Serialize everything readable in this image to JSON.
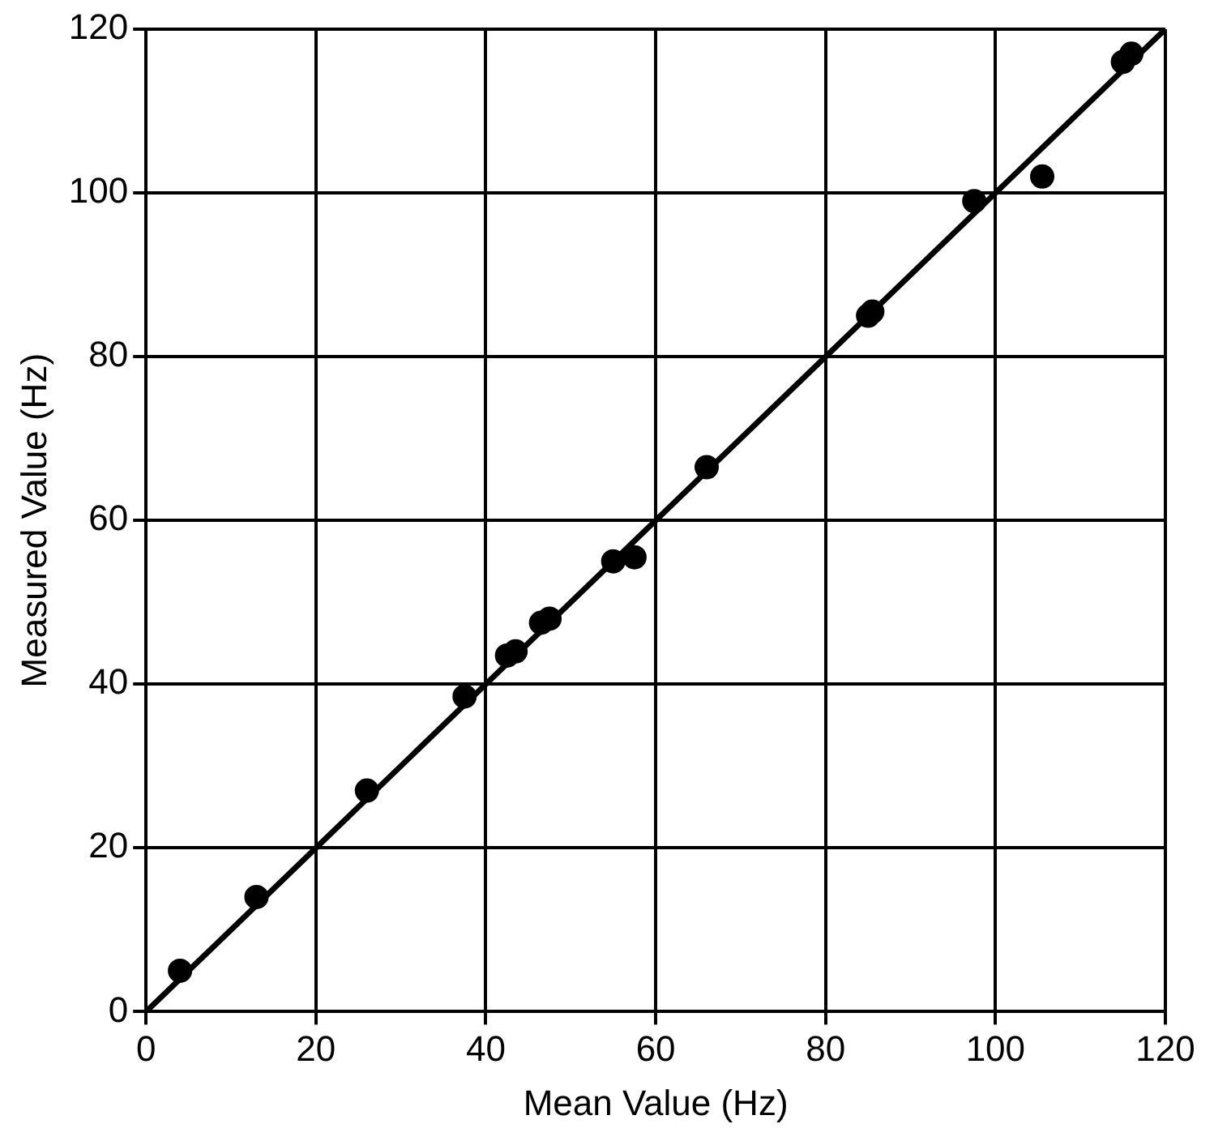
{
  "chart_data": {
    "type": "scatter",
    "xlabel": "Mean Value (Hz)",
    "ylabel": "Measured Value (Hz)",
    "xlim": [
      0,
      120
    ],
    "ylim": [
      0,
      120
    ],
    "xticks": [
      0,
      20,
      40,
      60,
      80,
      100,
      120
    ],
    "yticks": [
      0,
      20,
      40,
      60,
      80,
      100,
      120
    ],
    "grid": true,
    "legend": false,
    "marker": "circle",
    "series": [
      {
        "color": "#000000",
        "x": [
          4,
          13,
          26,
          37.5,
          42.5,
          43.5,
          46.5,
          47.5,
          55,
          57.5,
          66,
          85,
          85.5,
          97.5,
          105.5,
          115,
          116
        ],
        "values": [
          5,
          14,
          27,
          38.5,
          43.5,
          44,
          47.5,
          48,
          55,
          55.5,
          66.5,
          85,
          85.5,
          99,
          102,
          116,
          117
        ]
      },
      {
        "type": "line",
        "color": "#000000",
        "x": [
          0,
          120
        ],
        "values": [
          0,
          120
        ],
        "marker": "none",
        "line_style": "solid"
      }
    ]
  }
}
